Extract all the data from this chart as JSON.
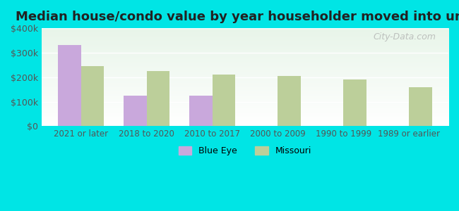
{
  "title": "Median house/condo value by year householder moved into unit",
  "categories": [
    "2021 or later",
    "2018 to 2020",
    "2010 to 2017",
    "2000 to 2009",
    "1990 to 1999",
    "1989 or earlier"
  ],
  "blue_eye_values": [
    330000,
    125000,
    125000,
    0,
    0,
    0
  ],
  "missouri_values": [
    245000,
    225000,
    210000,
    205000,
    190000,
    160000
  ],
  "blue_eye_color": "#c9a8dc",
  "missouri_color": "#bccf9a",
  "background_outer": "#00e5e5",
  "background_plot_top": "#e8f5e9",
  "background_plot_bottom": "#ffffff",
  "ylim": [
    0,
    400000
  ],
  "yticks": [
    0,
    100000,
    200000,
    300000,
    400000
  ],
  "ytick_labels": [
    "$0",
    "$100k",
    "$200k",
    "$300k",
    "$400k"
  ],
  "bar_width": 0.35,
  "watermark": "City-Data.com",
  "legend_blue_eye": "Blue Eye",
  "legend_missouri": "Missouri"
}
